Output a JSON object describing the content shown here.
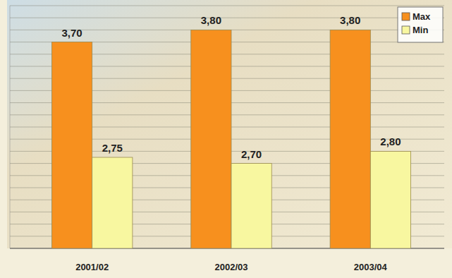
{
  "chart_data": {
    "type": "bar",
    "categories": [
      "2001/02",
      "2002/03",
      "2003/04"
    ],
    "series": [
      {
        "name": "Max",
        "color": "#f7901e",
        "values": [
          3.7,
          3.8,
          3.8
        ],
        "value_labels": [
          "3,70",
          "3,80",
          "3,80"
        ]
      },
      {
        "name": "Min",
        "color": "#f8f7a0",
        "values": [
          2.75,
          2.7,
          2.8
        ],
        "value_labels": [
          "2,75",
          "2,70",
          "2,80"
        ]
      }
    ],
    "ylim": [
      2.0,
      4.0
    ],
    "yticks": [
      2.0,
      2.1,
      2.2,
      2.3,
      2.4,
      2.5,
      2.6,
      2.7,
      2.8,
      2.9,
      3.0,
      3.1,
      3.2,
      3.3,
      3.4,
      3.5,
      3.6,
      3.7,
      3.8,
      3.9,
      4.0
    ],
    "grid": true,
    "legend": "top-right",
    "data_labels": true,
    "tick_labels": "x"
  }
}
